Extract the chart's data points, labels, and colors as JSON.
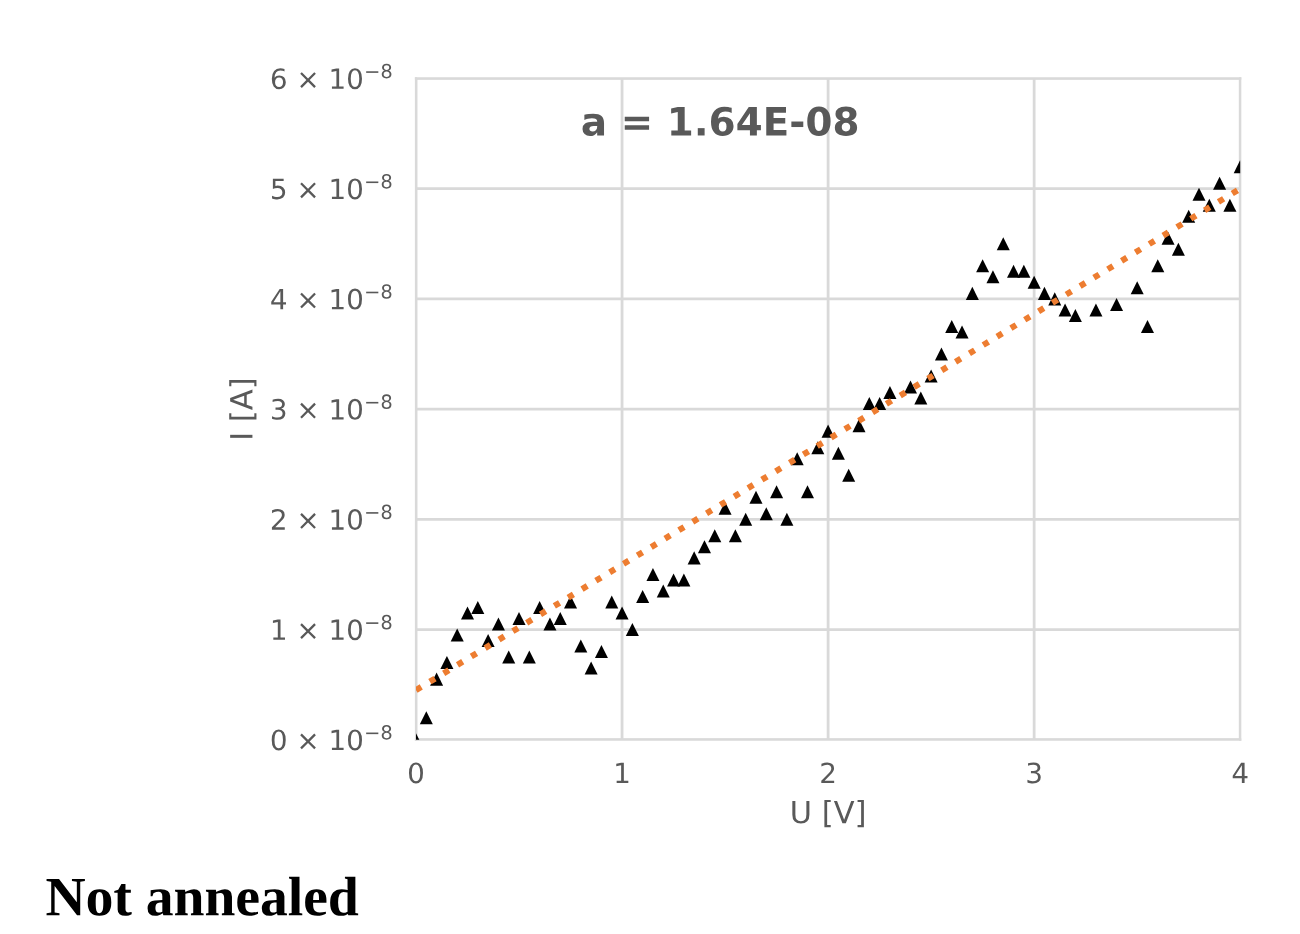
{
  "chart_data": {
    "type": "scatter",
    "xlabel": "U [V]",
    "ylabel": "I [A]",
    "annotations": [
      "a = 1.64E-08",
      "Not annealed"
    ],
    "xlim": [
      0,
      4
    ],
    "xticks": [
      0,
      1,
      2,
      3,
      4
    ],
    "ylim": [
      0,
      6e-08
    ],
    "yticks": [
      {
        "value": 0,
        "label": "0 × 10$^{−8}$"
      },
      {
        "value": 1e-08,
        "label": "1 × 10$^{−8}$"
      },
      {
        "value": 2e-08,
        "label": "2 × 10$^{−8}$"
      },
      {
        "value": 3e-08,
        "label": "3 × 10$^{−8}$"
      },
      {
        "value": 4e-08,
        "label": "4 × 10$^{−8}$"
      },
      {
        "value": 5e-08,
        "label": "5 × 10$^{−8}$"
      },
      {
        "value": 6e-08,
        "label": "6 × 10$^{−8}$"
      }
    ],
    "grid": true,
    "legend": false,
    "marker": "triangle",
    "series": [
      {
        "color": "#000000",
        "x": [
          0,
          0.05,
          0.1,
          0.15,
          0.2,
          0.25,
          0.3,
          0.35,
          0.4,
          0.45,
          0.5,
          0.55,
          0.6,
          0.65,
          0.7,
          0.75,
          0.8,
          0.85,
          0.9,
          0.95,
          1.0,
          1.05,
          1.1,
          1.15,
          1.2,
          1.25,
          1.3,
          1.35,
          1.4,
          1.45,
          1.5,
          1.55,
          1.6,
          1.65,
          1.7,
          1.75,
          1.8,
          1.85,
          1.9,
          1.95,
          2.0,
          2.05,
          2.1,
          2.15,
          2.2,
          2.25,
          2.3,
          2.4,
          2.45,
          2.5,
          2.55,
          2.6,
          2.65,
          2.7,
          2.75,
          2.8,
          2.85,
          2.9,
          2.95,
          3.0,
          3.05,
          3.1,
          3.15,
          3.2,
          3.3,
          3.4,
          3.5,
          3.55,
          3.6,
          3.65,
          3.7,
          3.75,
          3.8,
          3.85,
          3.9,
          3.95,
          4.0
        ],
        "values": [
          0,
          2e-09,
          5.5e-09,
          7e-09,
          9.5e-09,
          1.15e-08,
          1.2e-08,
          9e-09,
          1.05e-08,
          7.5e-09,
          1.1e-08,
          7.5e-09,
          1.2e-08,
          1.05e-08,
          1.1e-08,
          1.25e-08,
          8.5e-09,
          6.5e-09,
          8e-09,
          1.25e-08,
          1.15e-08,
          1e-08,
          1.3e-08,
          1.5e-08,
          1.35e-08,
          1.45e-08,
          1.45e-08,
          1.65e-08,
          1.75e-08,
          1.85e-08,
          2.1e-08,
          1.85e-08,
          2e-08,
          2.2e-08,
          2.05e-08,
          2.25e-08,
          2e-08,
          2.55e-08,
          2.25e-08,
          2.65e-08,
          2.8e-08,
          2.6e-08,
          2.4e-08,
          2.85e-08,
          3.05e-08,
          3.05e-08,
          3.15e-08,
          3.2e-08,
          3.1e-08,
          3.3e-08,
          3.5e-08,
          3.75e-08,
          3.7e-08,
          4.05e-08,
          4.3e-08,
          4.2e-08,
          4.5e-08,
          4.25e-08,
          4.25e-08,
          4.15e-08,
          4.05e-08,
          4e-08,
          3.9e-08,
          3.85e-08,
          3.9e-08,
          3.95e-08,
          4.1e-08,
          3.75e-08,
          4.3e-08,
          4.55e-08,
          4.45e-08,
          4.75e-08,
          4.95e-08,
          4.85e-08,
          5.05e-08,
          4.85e-08,
          5.2e-08
        ]
      },
      {
        "type": "line",
        "color": "#ed7d31",
        "line_style": "dotted",
        "marker": "none",
        "x": [
          0,
          4
        ],
        "values": [
          4.5e-09,
          5e-08
        ]
      }
    ]
  }
}
